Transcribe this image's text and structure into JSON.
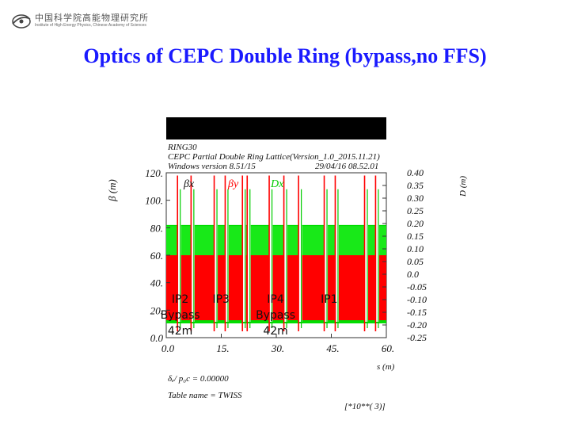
{
  "logo": {
    "cn": "中国科学院高能物理研究所",
    "en": "Institute of High Energy Physics, Chinese Academy of Sciences",
    "icon": "ihep-logo-icon"
  },
  "title": "Optics of CEPC Double Ring (bypass,no FFS)",
  "header": {
    "line1": "RING30",
    "line2": "CEPC Partial Double Ring Lattice(Version_1.0_2015.11.21)",
    "line3_left": "Windows version 8.51/15",
    "line3_right": "29/04/16  08.52.01"
  },
  "footer": {
    "delta": "δₑ/ p₀c  =    0.00000",
    "table": "Table name = TWISS",
    "scale": "[*10**( 3)]"
  },
  "chart_data": {
    "type": "line",
    "xlabel": "s (m)",
    "ylabel_left": "β (m)",
    "ylabel_right": "D (m)",
    "xlim": [
      0,
      60
    ],
    "ylim_left": [
      0,
      120
    ],
    "ylim_right": [
      -0.25,
      0.4
    ],
    "x_ticks": [
      "0.0",
      "15.",
      "30.",
      "45.",
      "60."
    ],
    "y_left_ticks": [
      "0.0",
      "20.",
      "40.",
      "60.",
      "80.",
      "100.",
      "120."
    ],
    "y_right_ticks": [
      "-0.25",
      "-0.20",
      "-0.15",
      "-0.10",
      "-0.05",
      "0.0",
      "0.05",
      "0.10",
      "0.15",
      "0.20",
      "0.25",
      "0.30",
      "0.35",
      "0.40"
    ],
    "series": [
      {
        "name": "βx",
        "color": "#ff0000",
        "approx_level": 60
      },
      {
        "name": "βy",
        "color": "#ff0000",
        "approx_level": 82
      },
      {
        "name": "Dx",
        "color": "#00cc00",
        "approx_level": 0.19
      }
    ],
    "spikes_s": [
      3.5,
      7.2,
      13.5,
      16.5,
      21.2,
      22.5,
      28.5,
      32.5,
      36.5,
      43.5,
      46.5,
      54.5,
      57.5
    ],
    "annotations": [
      {
        "text": "IP2\nBypass\n42m",
        "s": 2.5
      },
      {
        "text": "IP3",
        "s": 14.5
      },
      {
        "text": "IP4\nBypass\n42m",
        "s": 28.5
      },
      {
        "text": "IP1",
        "s": 44.0
      }
    ]
  }
}
